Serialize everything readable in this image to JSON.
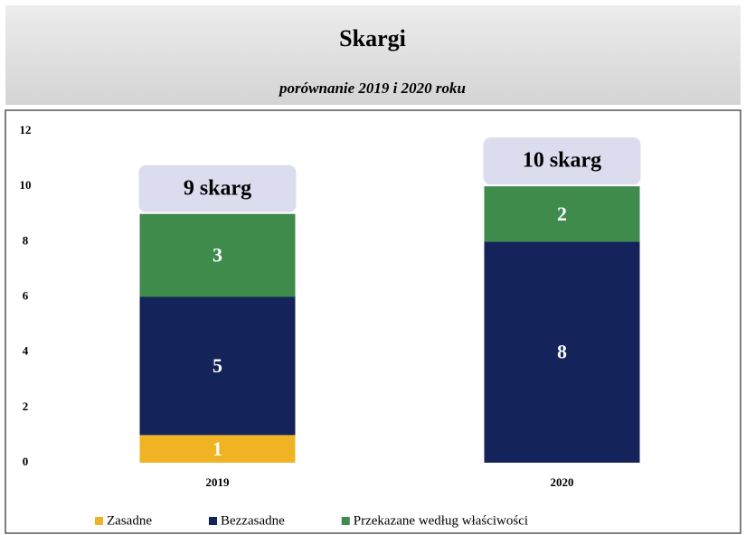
{
  "chart_data": {
    "type": "stacked_bar",
    "title": "Skargi",
    "subtitle": "porównanie 2019 i 2020 roku",
    "categories": [
      "2019",
      "2020"
    ],
    "series": [
      {
        "name": "Zasadne",
        "color": "#f0b323",
        "values": [
          1,
          0
        ]
      },
      {
        "name": "Bezzasadne",
        "color": "#14235a",
        "values": [
          5,
          8
        ]
      },
      {
        "name": "Przekazane według właściwości",
        "color": "#3e8b4c",
        "values": [
          3,
          2
        ]
      }
    ],
    "annotations": [
      "9 skarg",
      "10 skarg"
    ],
    "ylim": [
      0,
      12
    ],
    "yticks": [
      0,
      2,
      4,
      6,
      8,
      10,
      12
    ],
    "legend": "bottom"
  }
}
